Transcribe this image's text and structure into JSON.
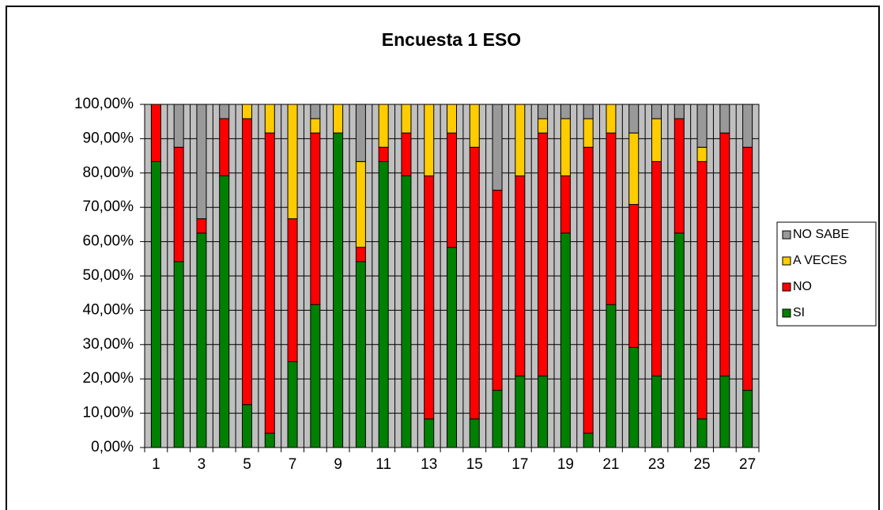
{
  "chart_data": {
    "type": "stacked_bar",
    "title": "Encuesta 1 ESO",
    "categories": [
      "1",
      null,
      "3",
      null,
      "5",
      null,
      "7",
      null,
      "9",
      null,
      "11",
      null,
      "13",
      null,
      "15",
      null,
      "17",
      null,
      "19",
      null,
      "21",
      null,
      "23",
      null,
      "25",
      null,
      "27"
    ],
    "series": [
      {
        "name": "SI",
        "color": "#008000",
        "values": [
          83.33,
          54.17,
          62.5,
          79.17,
          12.5,
          4.17,
          25,
          41.67,
          91.67,
          54.17,
          83.33,
          79.17,
          8.33,
          58.33,
          8.33,
          16.67,
          20.83,
          20.83,
          62.5,
          4.17,
          41.67,
          29.17,
          20.83,
          62.5,
          8.33,
          20.83,
          16.67
        ]
      },
      {
        "name": "NO",
        "color": "#ff0000",
        "values": [
          16.67,
          33.33,
          4.17,
          16.67,
          83.33,
          87.5,
          41.67,
          50,
          0,
          4.17,
          4.17,
          12.5,
          70.83,
          33.33,
          79.17,
          58.33,
          58.33,
          70.83,
          16.67,
          83.33,
          50,
          41.67,
          62.5,
          33.33,
          75,
          70.83,
          70.83
        ]
      },
      {
        "name": "A VECES",
        "color": "#ffcc00",
        "values": [
          0,
          0,
          0,
          0,
          4.17,
          8.33,
          33.33,
          4.17,
          8.33,
          25,
          12.5,
          8.33,
          20.83,
          8.33,
          12.5,
          0,
          20.83,
          4.17,
          16.67,
          8.33,
          8.33,
          20.83,
          12.5,
          0,
          4.17,
          0,
          0
        ]
      },
      {
        "name": "NO SABE",
        "color": "#999999",
        "values": [
          0,
          12.5,
          33.33,
          4.17,
          0,
          0,
          0,
          4.17,
          0,
          16.67,
          0,
          0,
          0,
          0,
          0,
          25,
          0,
          4.17,
          4.17,
          4.17,
          0,
          8.33,
          4.17,
          4.17,
          12.5,
          8.33,
          12.5
        ]
      }
    ],
    "ylim": [
      0,
      100
    ],
    "yticks": [
      {
        "value": 0,
        "label": "0,00%"
      },
      {
        "value": 10,
        "label": "10,00%"
      },
      {
        "value": 20,
        "label": "20,00%"
      },
      {
        "value": 30,
        "label": "30,00%"
      },
      {
        "value": 40,
        "label": "40,00%"
      },
      {
        "value": 50,
        "label": "50,00%"
      },
      {
        "value": 60,
        "label": "60,00%"
      },
      {
        "value": 70,
        "label": "70,00%"
      },
      {
        "value": 80,
        "label": "80,00%"
      },
      {
        "value": 90,
        "label": "90,00%"
      },
      {
        "value": 100,
        "label": "100,00%"
      }
    ],
    "grid": true,
    "legend": "right",
    "plot_background": "#c0c0c0"
  }
}
